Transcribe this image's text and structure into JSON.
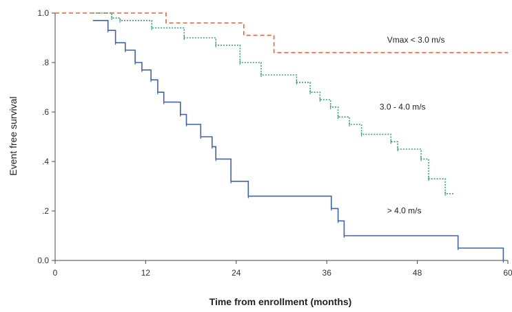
{
  "chart_data": {
    "type": "line",
    "title": "",
    "xlabel": "Time from enrollment (months)",
    "ylabel": "Event free survival",
    "xlim": [
      0,
      60
    ],
    "ylim": [
      0,
      1.0
    ],
    "grid": false,
    "x_ticks": [
      {
        "value": 0,
        "label": "0"
      },
      {
        "value": 12,
        "label": "12"
      },
      {
        "value": 24,
        "label": "24"
      },
      {
        "value": 36,
        "label": "36"
      },
      {
        "value": 48,
        "label": "48"
      },
      {
        "value": 60,
        "label": "60"
      }
    ],
    "y_ticks": [
      {
        "value": 0.0,
        "label": "0.0"
      },
      {
        "value": 0.2,
        "label": ".2"
      },
      {
        "value": 0.4,
        "label": ".4"
      },
      {
        "value": 0.6,
        "label": ".6"
      },
      {
        "value": 0.8,
        "label": ".8"
      },
      {
        "value": 1.0,
        "label": "1.0"
      }
    ],
    "series": [
      {
        "name": "Vmax < 3.0 m/s",
        "color": "#e8603a",
        "line_style": "dashed",
        "censor_marks": false,
        "x": [
          0,
          14.7,
          14.7,
          25,
          25,
          29,
          29,
          60
        ],
        "y": [
          1.0,
          1.0,
          0.96,
          0.96,
          0.91,
          0.91,
          0.84,
          0.84
        ]
      },
      {
        "name": "3.0 - 4.0 m/s",
        "color": "#3aa077",
        "line_style": "dotted",
        "censor_marks": true,
        "x": [
          5,
          7.5,
          7.5,
          8.6,
          8.6,
          12.8,
          12.8,
          17.1,
          17.1,
          21.3,
          21.3,
          24.5,
          24.5,
          27.3,
          27.3,
          32,
          32,
          33.8,
          33.8,
          35.1,
          35.1,
          36.5,
          36.5,
          37.5,
          37.5,
          39,
          39,
          40.6,
          40.6,
          44.5,
          44.5,
          45.4,
          45.4,
          48.5,
          48.5,
          49.5,
          49.5,
          51.7,
          51.7,
          52.8
        ],
        "y": [
          1.0,
          1.0,
          0.98,
          0.98,
          0.97,
          0.97,
          0.94,
          0.94,
          0.9,
          0.9,
          0.87,
          0.87,
          0.8,
          0.8,
          0.75,
          0.75,
          0.72,
          0.72,
          0.68,
          0.68,
          0.65,
          0.65,
          0.62,
          0.62,
          0.58,
          0.58,
          0.55,
          0.55,
          0.51,
          0.51,
          0.48,
          0.48,
          0.45,
          0.45,
          0.41,
          0.41,
          0.33,
          0.33,
          0.27,
          0.27
        ]
      },
      {
        "name": "> 4.0 m/s",
        "color": "#3f63ad",
        "line_style": "solid",
        "censor_marks": true,
        "x": [
          5,
          7,
          7,
          8,
          8,
          9.3,
          9.3,
          10.6,
          10.6,
          11.5,
          11.5,
          12.7,
          12.7,
          13.6,
          13.6,
          14.4,
          14.4,
          16.6,
          16.6,
          17.4,
          17.4,
          19.3,
          19.3,
          20.8,
          20.8,
          21.3,
          21.3,
          23.3,
          23.3,
          25.6,
          25.6,
          36.6,
          36.6,
          37.5,
          37.5,
          38.3,
          38.3,
          53.4,
          53.4,
          59.4,
          59.4
        ],
        "y": [
          0.97,
          0.97,
          0.93,
          0.93,
          0.88,
          0.88,
          0.85,
          0.85,
          0.8,
          0.8,
          0.77,
          0.77,
          0.73,
          0.73,
          0.68,
          0.68,
          0.64,
          0.64,
          0.59,
          0.59,
          0.55,
          0.55,
          0.5,
          0.5,
          0.46,
          0.46,
          0.41,
          0.41,
          0.32,
          0.32,
          0.26,
          0.26,
          0.21,
          0.21,
          0.16,
          0.16,
          0.1,
          0.1,
          0.05,
          0.05,
          0.0
        ]
      }
    ],
    "annotations": [
      {
        "text": "Vmax < 3.0 m/s",
        "x": 44,
        "y": 0.88,
        "series": 0
      },
      {
        "text": "3.0 - 4.0 m/s",
        "x": 43,
        "y": 0.61,
        "series": 1
      },
      {
        "text": "> 4.0 m/s",
        "x": 44,
        "y": 0.19,
        "series": 2
      }
    ]
  }
}
